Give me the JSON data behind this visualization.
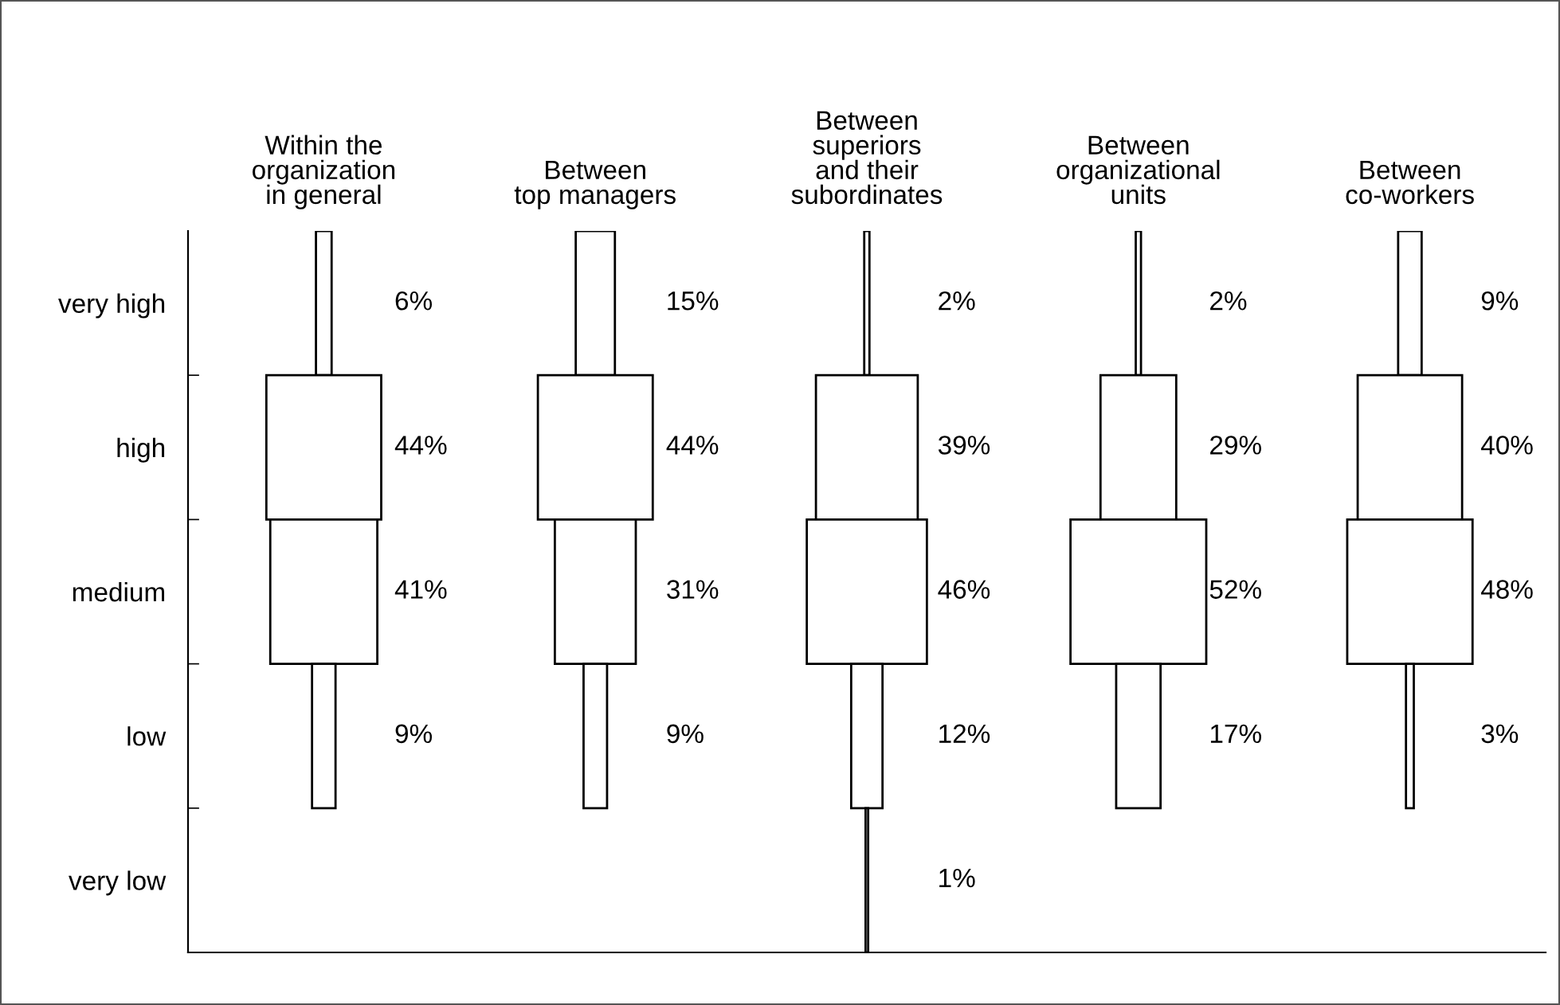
{
  "chart_data": {
    "type": "other",
    "categories": [
      "very high",
      "high",
      "medium",
      "low",
      "very low"
    ],
    "series": [
      {
        "name": "Within the\norganization\nin general",
        "values": [
          6,
          44,
          41,
          9,
          null
        ],
        "value_labels": [
          "6%",
          "44%",
          "41%",
          "9%",
          null
        ]
      },
      {
        "name": "Between\ntop managers",
        "values": [
          15,
          44,
          31,
          9,
          null
        ],
        "value_labels": [
          "15%",
          "44%",
          "31%",
          "9%",
          null
        ]
      },
      {
        "name": "Between\nsuperiors\nand their\nsubordinates",
        "values": [
          2,
          39,
          46,
          12,
          1
        ],
        "value_labels": [
          "2%",
          "39%",
          "46%",
          "12%",
          "1%"
        ]
      },
      {
        "name": "Between\norganizational\nunits",
        "values": [
          2,
          29,
          52,
          17,
          null
        ],
        "value_labels": [
          "2%",
          "29%",
          "52%",
          "17%",
          null
        ]
      },
      {
        "name": "Between\nco-workers",
        "values": [
          9,
          40,
          48,
          3,
          null
        ],
        "value_labels": [
          "9%",
          "40%",
          "48%",
          "3%",
          null
        ]
      }
    ]
  }
}
